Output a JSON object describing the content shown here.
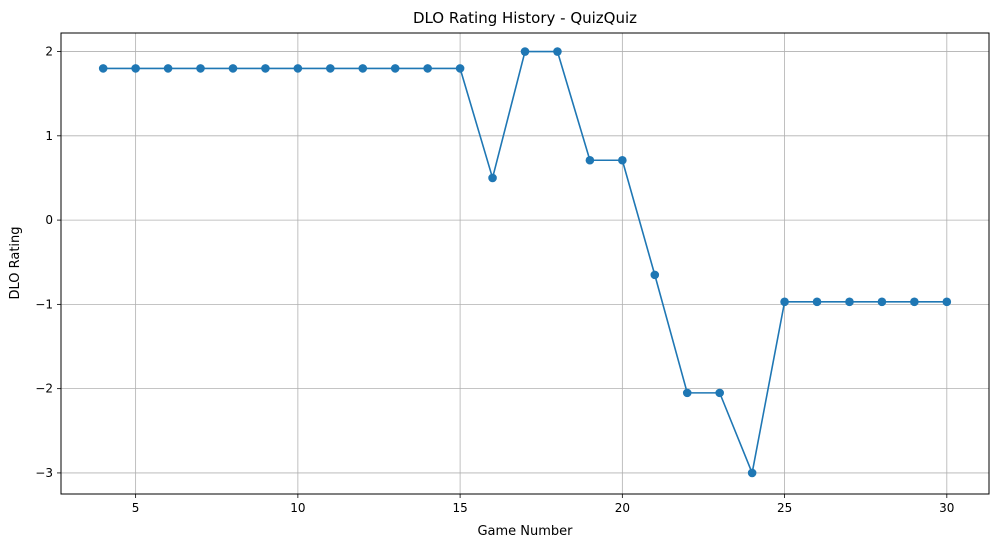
{
  "chart_data": {
    "type": "line",
    "title": "DLO Rating History - QuizQuiz",
    "xlabel": "Game Number",
    "ylabel": "DLO Rating",
    "xlim": [
      2.7,
      31.3
    ],
    "ylim": [
      -3.25,
      2.22
    ],
    "xticks": [
      5,
      10,
      15,
      20,
      25,
      30
    ],
    "yticks": [
      -3,
      -2,
      -1,
      0,
      1,
      2
    ],
    "xtick_labels": [
      "5",
      "10",
      "15",
      "20",
      "25",
      "30"
    ],
    "ytick_labels": [
      "−3",
      "−2",
      "−1",
      "0",
      "1",
      "2"
    ],
    "grid": true,
    "legend": "none",
    "series": [
      {
        "color": "#1f77b4",
        "marker": "circle",
        "x": [
          4,
          5,
          6,
          7,
          8,
          9,
          10,
          11,
          12,
          13,
          14,
          15,
          16,
          17,
          18,
          19,
          20,
          21,
          22,
          23,
          24,
          25,
          26,
          27,
          28,
          29,
          30
        ],
        "y": [
          1.8,
          1.8,
          1.8,
          1.8,
          1.8,
          1.8,
          1.8,
          1.8,
          1.8,
          1.8,
          1.8,
          1.8,
          0.5,
          2.0,
          2.0,
          0.71,
          0.71,
          -0.65,
          -2.05,
          -2.05,
          -3.0,
          -0.97,
          -0.97,
          -0.97,
          -0.97,
          -0.97,
          -0.97
        ]
      }
    ]
  }
}
